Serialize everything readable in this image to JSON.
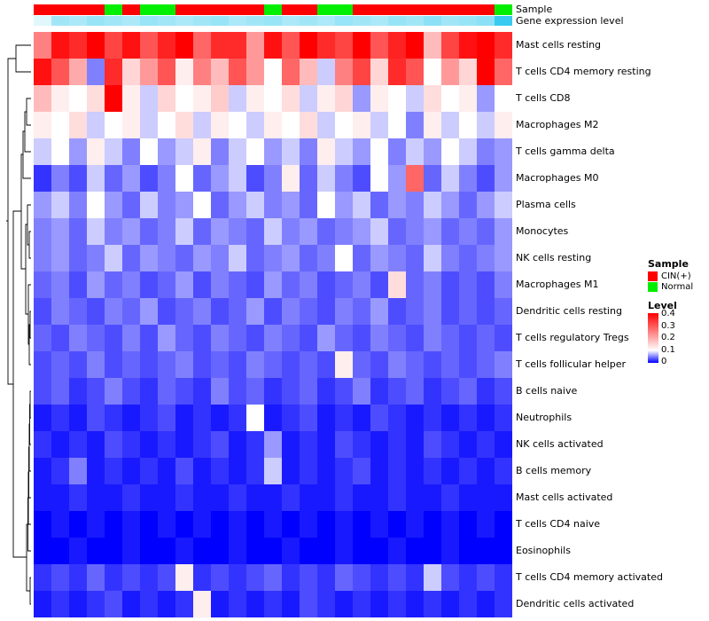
{
  "chart_data": {
    "type": "heatmap",
    "title": "",
    "rows": [
      "Mast cells resting",
      "T cells CD4 memory resting",
      "T cells CD8",
      "Macrophages M2",
      "T cells gamma delta",
      "Macrophages M0",
      "Plasma cells",
      "Monocytes",
      "NK cells resting",
      "Macrophages M1",
      "Dendritic cells resting",
      "T cells regulatory Tregs",
      "T cells follicular helper",
      "B cells naive",
      "Neutrophils",
      "NK cells activated",
      "B cells memory",
      "Mast cells activated",
      "T cells CD4 naive",
      "Eosinophils",
      "T cells CD4 memory activated",
      "Dendritic cells activated"
    ],
    "n_cols": 27,
    "vmin": 0,
    "vmax": 0.4,
    "white_point": 0.1,
    "colors": {
      "low": "#0000FF",
      "mid": "#FFFFFF",
      "high": "#FF0000"
    },
    "values": [
      [
        0.25,
        0.38,
        0.35,
        0.4,
        0.32,
        0.38,
        0.3,
        0.36,
        0.4,
        0.28,
        0.35,
        0.35,
        0.22,
        0.38,
        0.3,
        0.4,
        0.35,
        0.32,
        0.4,
        0.3,
        0.36,
        0.4,
        0.18,
        0.32,
        0.38,
        0.4,
        0.35
      ],
      [
        0.38,
        0.3,
        0.2,
        0.05,
        0.35,
        0.15,
        0.22,
        0.3,
        0.12,
        0.25,
        0.18,
        0.3,
        0.22,
        0.1,
        0.28,
        0.18,
        0.08,
        0.25,
        0.32,
        0.15,
        0.35,
        0.3,
        0.1,
        0.22,
        0.15,
        0.4,
        0.28
      ],
      [
        0.18,
        0.12,
        0.1,
        0.14,
        0.4,
        0.12,
        0.08,
        0.15,
        0.1,
        0.12,
        0.16,
        0.08,
        0.12,
        0.1,
        0.14,
        0.08,
        0.12,
        0.15,
        0.06,
        0.12,
        0.1,
        0.08,
        0.14,
        0.1,
        0.12,
        0.06,
        0.1
      ],
      [
        0.12,
        0.1,
        0.14,
        0.08,
        0.1,
        0.12,
        0.08,
        0.1,
        0.14,
        0.08,
        0.12,
        0.1,
        0.08,
        0.12,
        0.1,
        0.14,
        0.08,
        0.1,
        0.12,
        0.08,
        0.1,
        0.05,
        0.12,
        0.08,
        0.1,
        0.08,
        0.12
      ],
      [
        0.08,
        0.1,
        0.06,
        0.12,
        0.08,
        0.05,
        0.1,
        0.06,
        0.08,
        0.12,
        0.05,
        0.08,
        0.1,
        0.06,
        0.08,
        0.05,
        0.12,
        0.08,
        0.06,
        0.1,
        0.05,
        0.08,
        0.06,
        0.1,
        0.08,
        0.05,
        0.06
      ],
      [
        0.02,
        0.05,
        0.03,
        0.08,
        0.04,
        0.06,
        0.03,
        0.05,
        0.1,
        0.04,
        0.06,
        0.08,
        0.03,
        0.05,
        0.12,
        0.04,
        0.08,
        0.05,
        0.03,
        0.1,
        0.06,
        0.28,
        0.04,
        0.08,
        0.05,
        0.03,
        0.06
      ],
      [
        0.06,
        0.08,
        0.05,
        0.1,
        0.06,
        0.04,
        0.08,
        0.05,
        0.06,
        0.1,
        0.04,
        0.06,
        0.08,
        0.05,
        0.06,
        0.04,
        0.1,
        0.06,
        0.08,
        0.04,
        0.06,
        0.05,
        0.08,
        0.06,
        0.04,
        0.06,
        0.08
      ],
      [
        0.05,
        0.06,
        0.04,
        0.08,
        0.05,
        0.06,
        0.04,
        0.05,
        0.08,
        0.04,
        0.06,
        0.05,
        0.04,
        0.08,
        0.05,
        0.06,
        0.04,
        0.05,
        0.06,
        0.08,
        0.04,
        0.05,
        0.06,
        0.04,
        0.05,
        0.04,
        0.06
      ],
      [
        0.05,
        0.06,
        0.04,
        0.05,
        0.08,
        0.04,
        0.06,
        0.05,
        0.04,
        0.06,
        0.05,
        0.08,
        0.04,
        0.05,
        0.06,
        0.04,
        0.05,
        0.1,
        0.04,
        0.06,
        0.05,
        0.04,
        0.08,
        0.05,
        0.04,
        0.05,
        0.06
      ],
      [
        0.04,
        0.05,
        0.03,
        0.06,
        0.04,
        0.05,
        0.03,
        0.04,
        0.06,
        0.03,
        0.05,
        0.04,
        0.03,
        0.06,
        0.04,
        0.05,
        0.03,
        0.04,
        0.05,
        0.03,
        0.14,
        0.04,
        0.05,
        0.03,
        0.04,
        0.03,
        0.05
      ],
      [
        0.03,
        0.05,
        0.04,
        0.03,
        0.05,
        0.04,
        0.06,
        0.03,
        0.04,
        0.05,
        0.03,
        0.04,
        0.06,
        0.03,
        0.05,
        0.04,
        0.03,
        0.05,
        0.04,
        0.06,
        0.03,
        0.04,
        0.05,
        0.03,
        0.04,
        0.03,
        0.04
      ],
      [
        0.04,
        0.03,
        0.05,
        0.04,
        0.03,
        0.05,
        0.03,
        0.06,
        0.04,
        0.03,
        0.05,
        0.04,
        0.03,
        0.05,
        0.04,
        0.03,
        0.06,
        0.04,
        0.03,
        0.05,
        0.04,
        0.03,
        0.05,
        0.04,
        0.03,
        0.04,
        0.03
      ],
      [
        0.03,
        0.04,
        0.03,
        0.05,
        0.03,
        0.04,
        0.03,
        0.04,
        0.05,
        0.03,
        0.04,
        0.03,
        0.05,
        0.04,
        0.03,
        0.04,
        0.03,
        0.12,
        0.04,
        0.03,
        0.05,
        0.04,
        0.03,
        0.04,
        0.03,
        0.04,
        0.05
      ],
      [
        0.03,
        0.04,
        0.02,
        0.03,
        0.05,
        0.03,
        0.02,
        0.04,
        0.03,
        0.02,
        0.05,
        0.03,
        0.04,
        0.02,
        0.03,
        0.04,
        0.02,
        0.03,
        0.05,
        0.02,
        0.03,
        0.04,
        0.02,
        0.03,
        0.04,
        0.02,
        0.03
      ],
      [
        0.01,
        0.02,
        0.01,
        0.03,
        0.02,
        0.01,
        0.02,
        0.03,
        0.01,
        0.02,
        0.01,
        0.02,
        0.1,
        0.01,
        0.02,
        0.03,
        0.01,
        0.02,
        0.01,
        0.03,
        0.02,
        0.01,
        0.02,
        0.01,
        0.02,
        0.01,
        0.02
      ],
      [
        0.02,
        0.01,
        0.02,
        0.01,
        0.03,
        0.02,
        0.01,
        0.02,
        0.01,
        0.02,
        0.03,
        0.01,
        0.02,
        0.06,
        0.01,
        0.02,
        0.01,
        0.03,
        0.02,
        0.01,
        0.02,
        0.01,
        0.03,
        0.02,
        0.01,
        0.02,
        0.01
      ],
      [
        0.01,
        0.02,
        0.05,
        0.01,
        0.02,
        0.01,
        0.02,
        0.01,
        0.03,
        0.01,
        0.02,
        0.01,
        0.02,
        0.08,
        0.01,
        0.02,
        0.01,
        0.02,
        0.03,
        0.01,
        0.02,
        0.01,
        0.02,
        0.01,
        0.02,
        0.01,
        0.02
      ],
      [
        0.01,
        0.01,
        0.02,
        0.01,
        0.01,
        0.02,
        0.01,
        0.01,
        0.02,
        0.01,
        0.01,
        0.02,
        0.01,
        0.01,
        0.02,
        0.01,
        0.01,
        0.02,
        0.01,
        0.01,
        0.02,
        0.01,
        0.01,
        0.02,
        0.01,
        0.01,
        0.01
      ],
      [
        0.0,
        0.01,
        0.0,
        0.01,
        0.0,
        0.01,
        0.0,
        0.01,
        0.0,
        0.01,
        0.0,
        0.01,
        0.0,
        0.01,
        0.0,
        0.01,
        0.0,
        0.01,
        0.0,
        0.01,
        0.0,
        0.01,
        0.0,
        0.01,
        0.0,
        0.01,
        0.0
      ],
      [
        0.0,
        0.0,
        0.01,
        0.0,
        0.0,
        0.01,
        0.0,
        0.0,
        0.01,
        0.0,
        0.0,
        0.01,
        0.0,
        0.0,
        0.01,
        0.0,
        0.0,
        0.01,
        0.0,
        0.0,
        0.01,
        0.0,
        0.0,
        0.01,
        0.0,
        0.0,
        0.0
      ],
      [
        0.02,
        0.03,
        0.02,
        0.04,
        0.02,
        0.03,
        0.02,
        0.03,
        0.12,
        0.02,
        0.03,
        0.02,
        0.03,
        0.04,
        0.02,
        0.03,
        0.02,
        0.04,
        0.03,
        0.02,
        0.03,
        0.02,
        0.08,
        0.03,
        0.02,
        0.03,
        0.02
      ],
      [
        0.01,
        0.02,
        0.01,
        0.02,
        0.03,
        0.01,
        0.02,
        0.01,
        0.02,
        0.12,
        0.01,
        0.02,
        0.01,
        0.02,
        0.01,
        0.03,
        0.02,
        0.01,
        0.02,
        0.01,
        0.02,
        0.01,
        0.02,
        0.01,
        0.02,
        0.01,
        0.02
      ]
    ],
    "column_annotations": {
      "sample": {
        "label": "Sample",
        "values": [
          "CIN(+)",
          "CIN(+)",
          "CIN(+)",
          "CIN(+)",
          "Normal",
          "CIN(+)",
          "Normal",
          "Normal",
          "CIN(+)",
          "CIN(+)",
          "CIN(+)",
          "CIN(+)",
          "CIN(+)",
          "Normal",
          "CIN(+)",
          "CIN(+)",
          "Normal",
          "Normal",
          "CIN(+)",
          "CIN(+)",
          "CIN(+)",
          "CIN(+)",
          "CIN(+)",
          "CIN(+)",
          "CIN(+)",
          "CIN(+)",
          "Normal"
        ],
        "colors": {
          "CIN(+)": "#FF0000",
          "Normal": "#00EE00"
        }
      },
      "expression": {
        "label": "Gene expression level",
        "values": [
          0.15,
          0.45,
          0.4,
          0.5,
          0.45,
          0.4,
          0.5,
          0.45,
          0.4,
          0.45,
          0.5,
          0.4,
          0.45,
          0.5,
          0.4,
          0.45,
          0.4,
          0.5,
          0.45,
          0.4,
          0.5,
          0.45,
          0.55,
          0.45,
          0.5,
          0.55,
          0.95
        ],
        "colors": {
          "low": "#FFFFFF",
          "high": "#2EC8EE"
        }
      }
    },
    "legend": {
      "sample_title": "Sample",
      "entries": [
        {
          "label": "CIN(+)",
          "color": "#FF0000"
        },
        {
          "label": "Normal",
          "color": "#00EE00"
        }
      ],
      "level_title": "Level",
      "ticks": [
        "0.4",
        "0.3",
        "0.2",
        "0.1",
        "0"
      ]
    },
    "grid": false,
    "legend_position": "right"
  }
}
